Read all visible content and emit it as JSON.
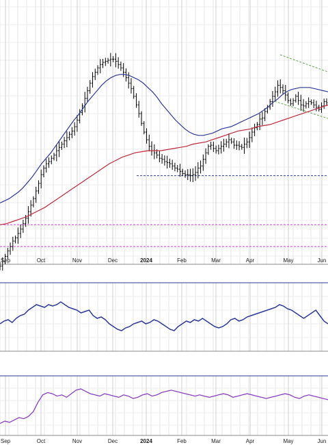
{
  "chart_data": {
    "type": "line",
    "title": "",
    "months": [
      "Sep",
      "Oct",
      "Nov",
      "Dec",
      "2024",
      "Feb",
      "Mar",
      "Apr",
      "May",
      "Jun"
    ],
    "price_panel": {
      "series": [
        {
          "name": "",
          "kind": "ohlc-bars",
          "color": "#000000"
        },
        {
          "name": "",
          "kind": "moving-average-short",
          "color": "#2b3a9a"
        },
        {
          "name": "",
          "kind": "moving-average-long",
          "color": "#c0283a"
        }
      ],
      "close": [
        62,
        66,
        71,
        76,
        80,
        85,
        88,
        92,
        96,
        101,
        106,
        112,
        118,
        124,
        131,
        138,
        146,
        152,
        156,
        158,
        161,
        164,
        168,
        171,
        174,
        177,
        180,
        183,
        186,
        190,
        196,
        203,
        209,
        216,
        223,
        230,
        236,
        240,
        244,
        247,
        249,
        250,
        251,
        252,
        252,
        250,
        247,
        244,
        240,
        235,
        230,
        225,
        218,
        210,
        202,
        193,
        185,
        178,
        172,
        168,
        166,
        164,
        161,
        160,
        158,
        157,
        156,
        154,
        152,
        151,
        149,
        147,
        146,
        146,
        145,
        146,
        148,
        152,
        154,
        160,
        166,
        172,
        173,
        170,
        168,
        170,
        172,
        174,
        176,
        178,
        176,
        173,
        173,
        172,
        171,
        174,
        176,
        180,
        185,
        189,
        192,
        197,
        198,
        204,
        208,
        213,
        218,
        222,
        228,
        226,
        223,
        219,
        214,
        211,
        214,
        218,
        214,
        210,
        209,
        211,
        213,
        212,
        210,
        208,
        206,
        209,
        213,
        212
      ],
      "ma_short": [
        120,
        122,
        124,
        127,
        130,
        134,
        139,
        144,
        150,
        156,
        161,
        166,
        172,
        178,
        184,
        190,
        196,
        201,
        207,
        213,
        218,
        223,
        228,
        232,
        235,
        237,
        238,
        238,
        237,
        235,
        233,
        230,
        226,
        222,
        217,
        211,
        206,
        201,
        196,
        192,
        188,
        185,
        183,
        182,
        182,
        183,
        184,
        186,
        188,
        189,
        190,
        192,
        194,
        196,
        198,
        200,
        202,
        205,
        208,
        212,
        215,
        219,
        222,
        224,
        225,
        226,
        226,
        226,
        225,
        224,
        223,
        222
      ],
      "ma_long": [
        100,
        101,
        103,
        105,
        107,
        110,
        113,
        116,
        120,
        124,
        128,
        132,
        136,
        140,
        144,
        148,
        152,
        156,
        159,
        162,
        164,
        166,
        167,
        168,
        168,
        168,
        169,
        170,
        171,
        172,
        174,
        175,
        176,
        178,
        180,
        182,
        184,
        186,
        187,
        188,
        190,
        191,
        192,
        194,
        196,
        198,
        200,
        202,
        204,
        206,
        208,
        210
      ],
      "levels": [
        {
          "kind": "support",
          "color": "#2b3a9a",
          "style": "dashed",
          "value": 145
        },
        {
          "kind": "lower",
          "color": "#d63adf",
          "style": "dashed",
          "value": 100
        },
        {
          "kind": "lowest",
          "color": "#d63adf",
          "style": "dashed",
          "value": 80
        }
      ],
      "channel": {
        "color": "#5aa84a",
        "style": "dashed"
      },
      "ylim": [
        70,
        300
      ]
    },
    "indicator_1": {
      "name": "",
      "color": "#2b3a9a",
      "values": [
        60,
        62,
        63,
        61,
        64,
        66,
        67,
        70,
        72,
        74,
        73,
        72,
        74,
        73,
        74,
        76,
        74,
        72,
        71,
        70,
        68,
        69,
        70,
        66,
        64,
        65,
        63,
        60,
        58,
        56,
        55,
        57,
        58,
        60,
        61,
        62,
        60,
        61,
        63,
        62,
        60,
        58,
        56,
        55,
        58,
        60,
        62,
        61,
        63,
        62,
        64,
        62,
        60,
        58,
        57,
        58,
        60,
        63,
        64,
        62,
        63,
        65,
        66,
        67,
        68,
        69,
        70,
        71,
        72,
        74,
        73,
        71,
        70,
        68,
        66,
        64,
        66,
        68,
        70,
        66,
        62,
        60
      ],
      "ylim": [
        40,
        90
      ]
    },
    "indicator_2": {
      "name": "",
      "color": "#8b3fc4",
      "values": [
        20,
        22,
        21,
        23,
        25,
        24,
        26,
        30,
        38,
        44,
        46,
        45,
        43,
        44,
        42,
        45,
        48,
        49,
        47,
        45,
        44,
        43,
        45,
        44,
        43,
        42,
        44,
        43,
        41,
        42,
        44,
        45,
        43,
        44,
        46,
        47,
        48,
        47,
        46,
        45,
        44,
        43,
        44,
        43,
        42,
        43,
        44,
        45,
        44,
        42,
        43,
        44,
        45,
        44,
        43,
        42,
        41,
        42,
        43,
        44,
        45,
        44,
        42,
        41,
        43,
        44,
        43,
        42,
        41,
        40
      ],
      "ylim": [
        10,
        60
      ]
    }
  }
}
